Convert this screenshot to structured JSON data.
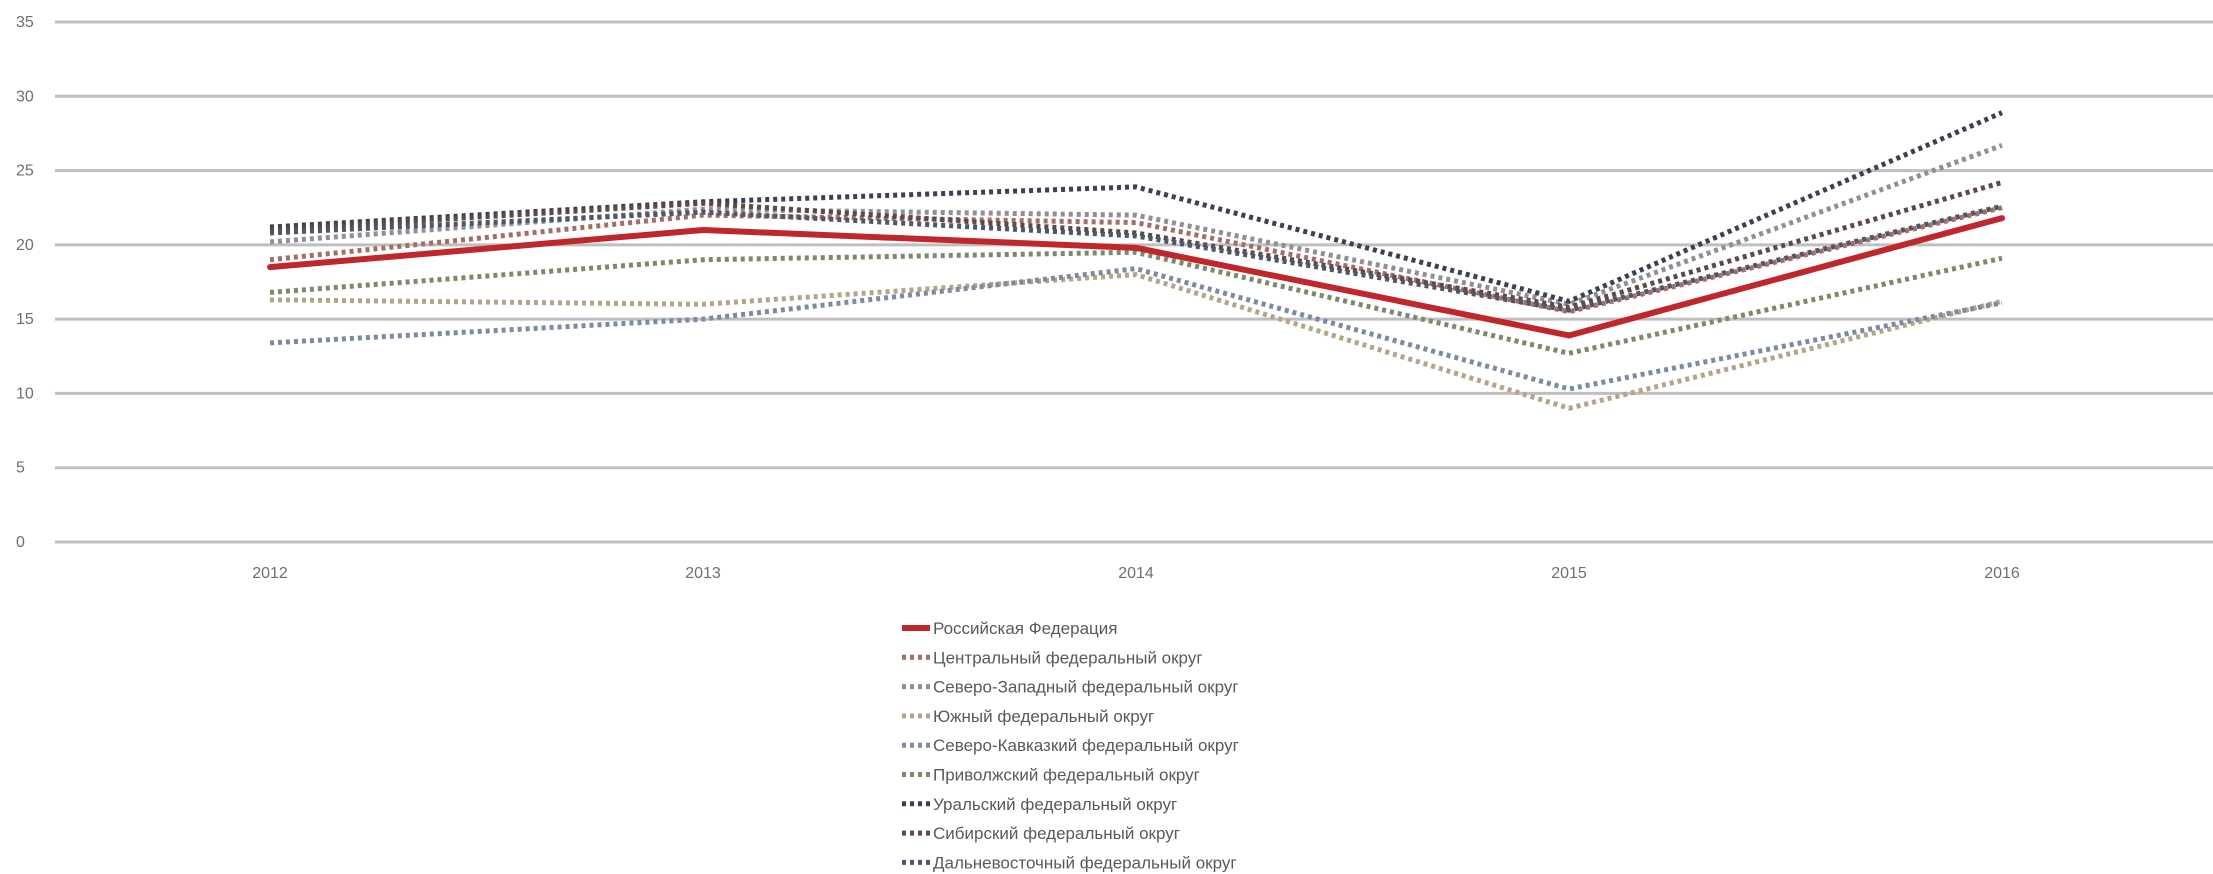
{
  "chart_data": {
    "type": "line",
    "title": "",
    "xlabel": "",
    "ylabel": "",
    "categories": [
      "2012",
      "2013",
      "2014",
      "2015",
      "2016"
    ],
    "ylim": [
      0,
      35
    ],
    "yticks": [
      0,
      5,
      10,
      15,
      20,
      25,
      30,
      35
    ],
    "grid": true,
    "legend_position": "bottom",
    "series": [
      {
        "name": "Российская Федерация",
        "values": [
          18.5,
          21.0,
          19.8,
          13.9,
          21.8
        ],
        "color": "#c0272d",
        "style": "solid"
      },
      {
        "name": "Центральный федеральный округ",
        "values": [
          19.0,
          22.0,
          21.5,
          15.5,
          22.5
        ],
        "color": "#a46d66",
        "style": "dotted"
      },
      {
        "name": "Северо-Западный федеральный округ",
        "values": [
          20.2,
          22.4,
          22.0,
          16.0,
          26.7
        ],
        "color": "#8e9096",
        "style": "dotted"
      },
      {
        "name": "Южный федеральный округ",
        "values": [
          16.3,
          16.0,
          18.0,
          9.0,
          16.2
        ],
        "color": "#b4a684",
        "style": "dotted"
      },
      {
        "name": "Северо-Кавказкий федеральный округ",
        "values": [
          13.4,
          15.0,
          18.4,
          10.3,
          16.1
        ],
        "color": "#7d8aa2",
        "style": "dotted"
      },
      {
        "name": "Приволжский федеральный округ",
        "values": [
          16.8,
          19.0,
          19.5,
          12.7,
          19.1
        ],
        "color": "#7b8a6f",
        "style": "dotted"
      },
      {
        "name": "Уральский федеральный округ",
        "values": [
          21.2,
          22.9,
          23.9,
          16.2,
          28.9
        ],
        "color": "#3c4050",
        "style": "dotted"
      },
      {
        "name": "Сибирский федеральный округ",
        "values": [
          21.0,
          22.8,
          20.8,
          15.8,
          24.2
        ],
        "color": "#5c4a4a",
        "style": "dotted"
      },
      {
        "name": "Дальневосточный федеральный округ",
        "values": [
          20.8,
          22.2,
          20.6,
          15.6,
          22.6
        ],
        "color": "#4f5668",
        "style": "dotted"
      }
    ],
    "colors": {
      "grid": "#bfbfbf",
      "tick_label": "#6f6f6f",
      "legend_label": "#595959"
    }
  }
}
